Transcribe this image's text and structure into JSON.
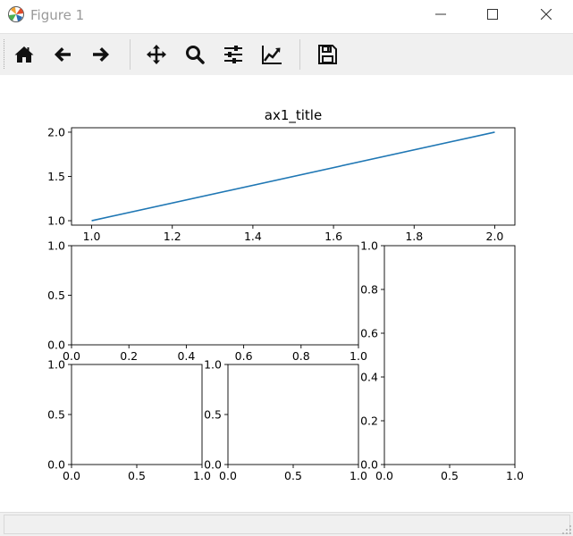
{
  "window": {
    "title": "Figure 1",
    "icon": "matplotlib-logo-icon",
    "controls": [
      "minimize-icon",
      "maximize-icon",
      "close-icon"
    ]
  },
  "toolbar": {
    "buttons": [
      {
        "name": "home",
        "icon": "home-icon",
        "tooltip": ""
      },
      {
        "name": "back",
        "icon": "arrow-left-icon"
      },
      {
        "name": "forward",
        "icon": "arrow-right-icon"
      },
      {
        "name": "pan",
        "icon": "move-icon"
      },
      {
        "name": "zoom",
        "icon": "zoom-icon"
      },
      {
        "name": "configure-subplots",
        "icon": "sliders-icon"
      },
      {
        "name": "edit-axis",
        "icon": "line-chart-icon"
      },
      {
        "name": "save",
        "icon": "save-icon"
      }
    ]
  },
  "status": {
    "text": ""
  },
  "colors": {
    "line": "#1f77b4",
    "toolbar_bg": "#f0f0f0",
    "axes_edge": "#000000"
  },
  "chart_data": [
    {
      "type": "line",
      "title": "ax1_title",
      "xlabel": "",
      "ylabel": "",
      "x": [
        1.0,
        2.0
      ],
      "series": [
        {
          "values": [
            1.0,
            2.0
          ]
        }
      ],
      "xlim": [
        0.95,
        2.05
      ],
      "ylim": [
        0.95,
        2.05
      ],
      "xticks": [
        "1.0",
        "1.2",
        "1.4",
        "1.6",
        "1.8",
        "2.0"
      ],
      "yticks": [
        "1.0",
        "1.5",
        "2.0"
      ],
      "grid": false
    },
    {
      "type": "line",
      "title": "",
      "series": [],
      "xlim": [
        0,
        1
      ],
      "ylim": [
        0,
        1
      ],
      "xticks": [
        "0.0",
        "0.2",
        "0.4",
        "0.6",
        "0.8",
        "1.0"
      ],
      "yticks": [
        "0.0",
        "0.5",
        "1.0"
      ]
    },
    {
      "type": "line",
      "title": "",
      "series": [],
      "xlim": [
        0,
        1
      ],
      "ylim": [
        0,
        1
      ],
      "xticks": [
        "0.0",
        "0.5",
        "1.0"
      ],
      "yticks": [
        "0.0",
        "0.2",
        "0.4",
        "0.6",
        "0.8",
        "1.0"
      ]
    },
    {
      "type": "line",
      "title": "",
      "series": [],
      "xlim": [
        0,
        1
      ],
      "ylim": [
        0,
        1
      ],
      "xticks": [
        "0.0",
        "0.5",
        "1.0"
      ],
      "yticks": [
        "0.0",
        "0.5",
        "1.0"
      ]
    },
    {
      "type": "line",
      "title": "",
      "series": [],
      "xlim": [
        0,
        1
      ],
      "ylim": [
        0,
        1
      ],
      "xticks": [
        "0.0",
        "0.5",
        "1.0"
      ],
      "yticks": [
        "0.0",
        "0.5",
        "1.0"
      ]
    }
  ]
}
